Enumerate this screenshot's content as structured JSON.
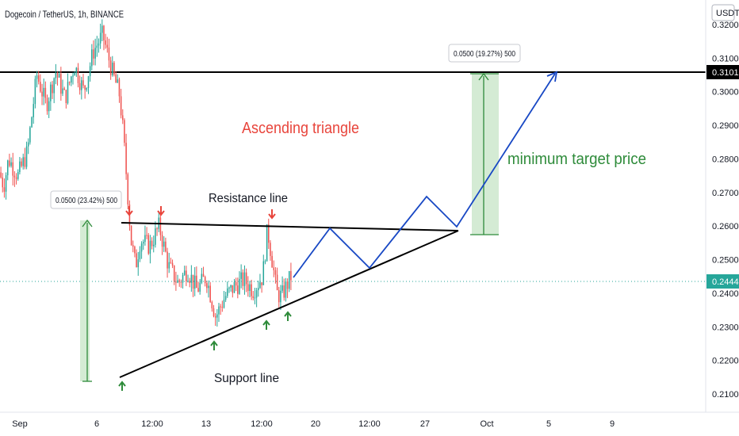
{
  "header": {
    "symbol_title": "Dogecoin / TetherUS, 1h, BINANCE",
    "currency": "USDT"
  },
  "colors": {
    "up": "#26a69a",
    "down": "#ef5350",
    "blue": "#1848c4",
    "green_zone": "#b9e1bb",
    "green_text": "#2e8b3a",
    "red_text": "#e8453c",
    "current_price_bg": "#26a69a"
  },
  "chart_data": {
    "type": "candlestick",
    "ylim": [
      0.206,
      0.324
    ],
    "x_tick_labels": [
      "Sep",
      "6",
      "12:00",
      "13",
      "12:00",
      "20",
      "12:00",
      "27",
      "Oct",
      "5",
      "9"
    ],
    "y_tick_labels": [
      "0.3200",
      "0.3100",
      "0.3000",
      "0.2900",
      "0.2800",
      "0.2700",
      "0.2600",
      "0.2500",
      "0.2400",
      "0.2300",
      "0.2200",
      "0.2100"
    ],
    "y_tick_values": [
      0.32,
      0.31,
      0.3,
      0.29,
      0.28,
      0.27,
      0.26,
      0.25,
      0.24,
      0.23,
      0.22,
      0.21
    ],
    "current_price": "0.2444",
    "current_price_value": 0.2444,
    "horizontal_level": "0.3101",
    "horizontal_level_value": 0.3101,
    "candle_path_keypoints": [
      {
        "x": 0.0,
        "price": 0.276
      },
      {
        "x": 0.05,
        "price": 0.272
      },
      {
        "x": 0.1,
        "price": 0.28
      },
      {
        "x": 0.2,
        "price": 0.275
      },
      {
        "x": 0.3,
        "price": 0.282
      },
      {
        "x": 0.4,
        "price": 0.305
      },
      {
        "x": 0.5,
        "price": 0.296
      },
      {
        "x": 0.6,
        "price": 0.306
      },
      {
        "x": 0.7,
        "price": 0.298
      },
      {
        "x": 0.8,
        "price": 0.308
      },
      {
        "x": 0.9,
        "price": 0.3
      },
      {
        "x": 1.0,
        "price": 0.312
      },
      {
        "x": 1.1,
        "price": 0.317
      },
      {
        "x": 1.2,
        "price": 0.306
      },
      {
        "x": 1.28,
        "price": 0.299
      },
      {
        "x": 1.32,
        "price": 0.287
      },
      {
        "x": 1.36,
        "price": 0.272
      },
      {
        "x": 1.4,
        "price": 0.256
      },
      {
        "x": 1.45,
        "price": 0.248
      },
      {
        "x": 1.5,
        "price": 0.256
      },
      {
        "x": 1.6,
        "price": 0.254
      },
      {
        "x": 1.7,
        "price": 0.26
      },
      {
        "x": 1.8,
        "price": 0.248
      },
      {
        "x": 1.9,
        "price": 0.243
      },
      {
        "x": 2.0,
        "price": 0.247
      },
      {
        "x": 2.1,
        "price": 0.241
      },
      {
        "x": 2.2,
        "price": 0.245
      },
      {
        "x": 2.3,
        "price": 0.233
      },
      {
        "x": 2.4,
        "price": 0.239
      },
      {
        "x": 2.5,
        "price": 0.242
      },
      {
        "x": 2.6,
        "price": 0.244
      },
      {
        "x": 2.7,
        "price": 0.241
      },
      {
        "x": 2.8,
        "price": 0.245
      },
      {
        "x": 2.85,
        "price": 0.259
      },
      {
        "x": 2.9,
        "price": 0.25
      },
      {
        "x": 2.95,
        "price": 0.24
      },
      {
        "x": 3.0,
        "price": 0.239
      },
      {
        "x": 3.05,
        "price": 0.242
      },
      {
        "x": 3.1,
        "price": 0.245
      }
    ]
  },
  "annotations": {
    "ascending_triangle": "Ascending triangle",
    "resistance_line": "Resistance line",
    "support_line": "Support line",
    "minimum_target_price": "minimum target price",
    "callout_left": "0.0500 (23.42%) 500",
    "callout_right": "0.0500 (19.27%) 500"
  }
}
